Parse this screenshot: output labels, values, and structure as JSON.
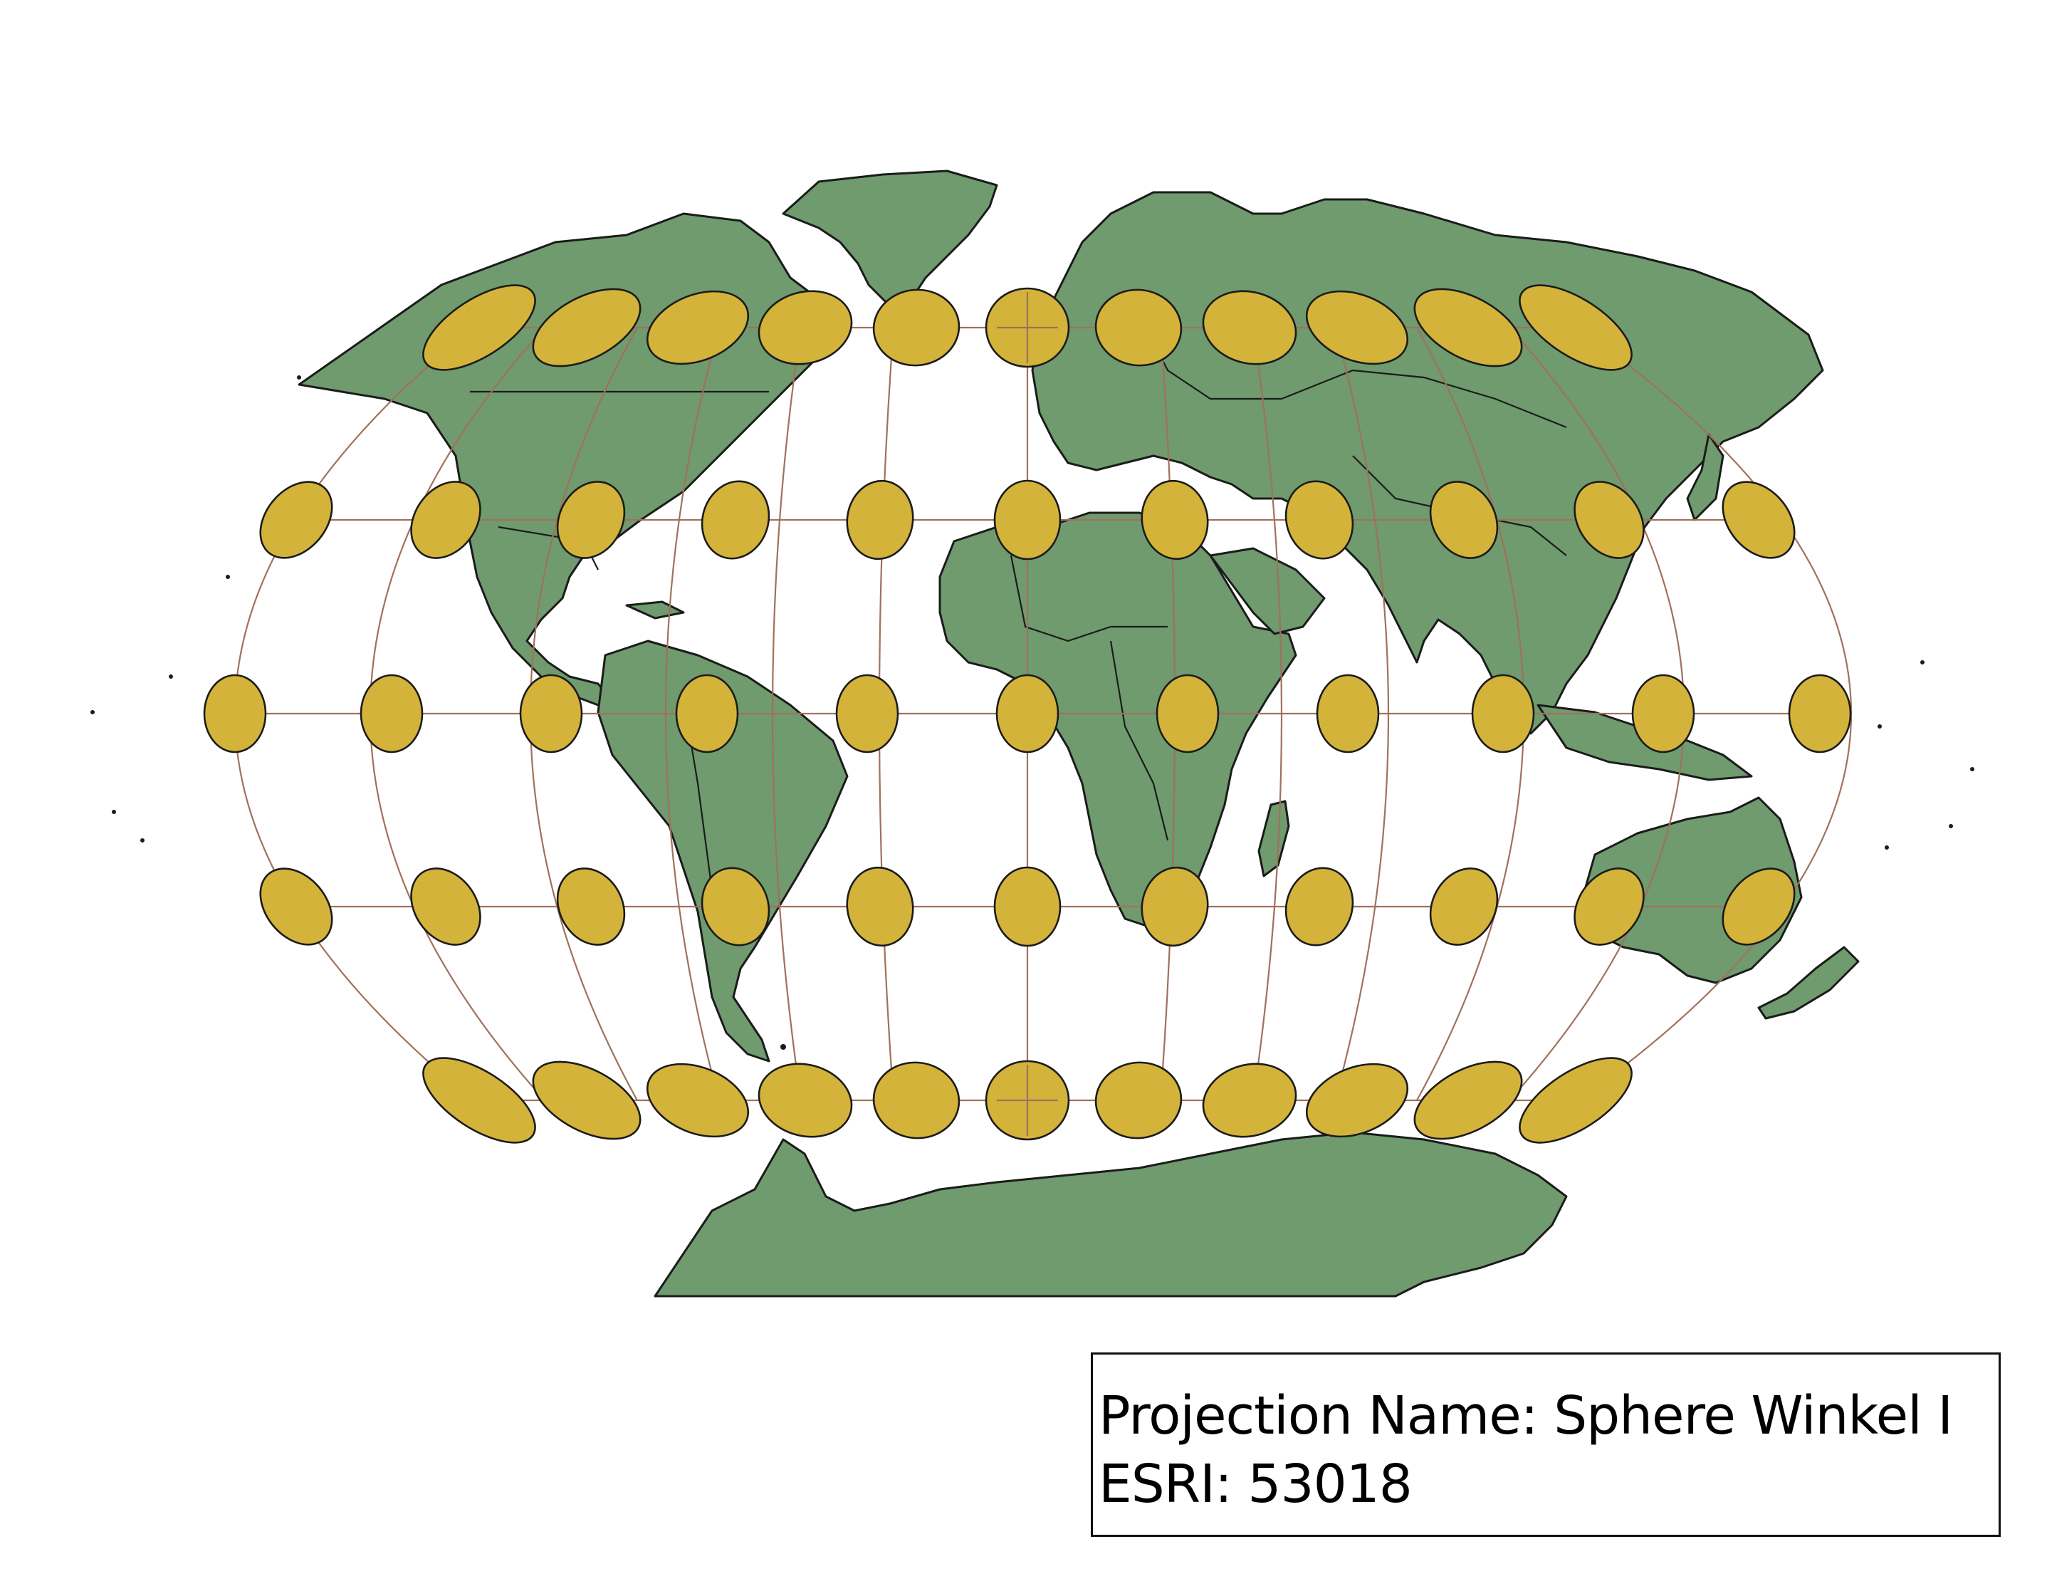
{
  "map": {
    "projection_name_text": "Projection Name: Sphere Winkel I",
    "esri_text": "ESRI: 53018",
    "colors": {
      "land": "#6f9b6e",
      "coastline": "#1b1b1b",
      "graticule": "#a0715c",
      "indicatrix_fill": "#d4b33a",
      "background": "#ffffff"
    },
    "graticule": {
      "parallels_deg": [
        60,
        30,
        0,
        -30,
        -60
      ],
      "meridians_deg": [
        -150,
        -120,
        -90,
        -60,
        -30,
        0,
        30,
        60,
        90,
        120,
        150
      ]
    },
    "tissot_indicatrices": {
      "lats_deg": [
        60,
        30,
        0,
        -30,
        -60
      ],
      "lons_deg": [
        -150,
        -120,
        -90,
        -60,
        -30,
        0,
        30,
        60,
        90,
        120,
        150
      ]
    },
    "land_features": [
      "north-america",
      "greenland",
      "south-america",
      "africa",
      "eurasia",
      "australia",
      "antarctica",
      "madagascar",
      "new-zealand"
    ]
  }
}
